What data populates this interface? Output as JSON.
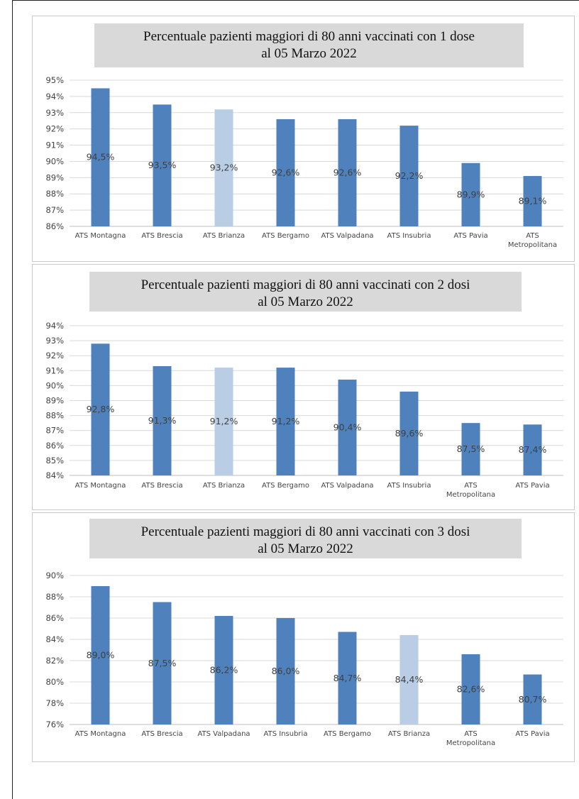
{
  "chart_data": [
    {
      "type": "bar",
      "title_lines": [
        "Percentuale pazienti maggiori di 80 anni vaccinati con 1 dose",
        "al 05 Marzo 2022"
      ],
      "categories": [
        [
          "ATS Montagna"
        ],
        [
          "ATS Brescia"
        ],
        [
          "ATS Brianza"
        ],
        [
          "ATS Bergamo"
        ],
        [
          "ATS Valpadana"
        ],
        [
          "ATS Insubria"
        ],
        [
          "ATS Pavia"
        ],
        [
          "ATS",
          "Metropolitana"
        ]
      ],
      "values": [
        94.5,
        93.5,
        93.2,
        92.6,
        92.6,
        92.2,
        89.9,
        89.1
      ],
      "data_labels": [
        "94,5%",
        "93,5%",
        "93,2%",
        "92,6%",
        "92,6%",
        "92,2%",
        "89,9%",
        "89,1%"
      ],
      "highlight_index": 2,
      "ylim": [
        86,
        95
      ],
      "yticks": [
        "86%",
        "87%",
        "88%",
        "89%",
        "90%",
        "91%",
        "92%",
        "93%",
        "94%",
        "95%"
      ],
      "grid": true
    },
    {
      "type": "bar",
      "title_lines": [
        "Percentuale pazienti maggiori di 80 anni vaccinati con 2 dosi",
        "al 05 Marzo 2022"
      ],
      "categories": [
        [
          "ATS Montagna"
        ],
        [
          "ATS Brescia"
        ],
        [
          "ATS Brianza"
        ],
        [
          "ATS Bergamo"
        ],
        [
          "ATS Valpadana"
        ],
        [
          "ATS Insubria"
        ],
        [
          "ATS",
          "Metropolitana"
        ],
        [
          "ATS Pavia"
        ]
      ],
      "values": [
        92.8,
        91.3,
        91.2,
        91.2,
        90.4,
        89.6,
        87.5,
        87.4
      ],
      "data_labels": [
        "92,8%",
        "91,3%",
        "91,2%",
        "91,2%",
        "90,4%",
        "89,6%",
        "87,5%",
        "87,4%"
      ],
      "highlight_index": 2,
      "ylim": [
        84,
        94
      ],
      "yticks": [
        "84%",
        "85%",
        "86%",
        "87%",
        "88%",
        "89%",
        "90%",
        "91%",
        "92%",
        "93%",
        "94%"
      ],
      "grid": true
    },
    {
      "type": "bar",
      "title_lines": [
        "Percentuale pazienti maggiori di 80 anni vaccinati con 3 dosi",
        "al 05 Marzo 2022"
      ],
      "categories": [
        [
          "ATS Montagna"
        ],
        [
          "ATS Brescia"
        ],
        [
          "ATS Valpadana"
        ],
        [
          "ATS Insubria"
        ],
        [
          "ATS Bergamo"
        ],
        [
          "ATS Brianza"
        ],
        [
          "ATS",
          "Metropolitana"
        ],
        [
          "ATS Pavia"
        ]
      ],
      "values": [
        89.0,
        87.5,
        86.2,
        86.0,
        84.7,
        84.4,
        82.6,
        80.7
      ],
      "data_labels": [
        "89,0%",
        "87,5%",
        "86,2%",
        "86,0%",
        "84,7%",
        "84,4%",
        "82,6%",
        "80,7%"
      ],
      "highlight_index": 5,
      "ylim": [
        76,
        90
      ],
      "yticks": [
        "76%",
        "78%",
        "80%",
        "82%",
        "84%",
        "86%",
        "88%",
        "90%"
      ],
      "grid": true
    }
  ],
  "colors": {
    "bar": "#4f81bd",
    "highlight_bar": "#b9cde5",
    "title_bg": "#d9d9d9",
    "grid": "#d9d9d9",
    "axis": "#bfbfbf"
  }
}
